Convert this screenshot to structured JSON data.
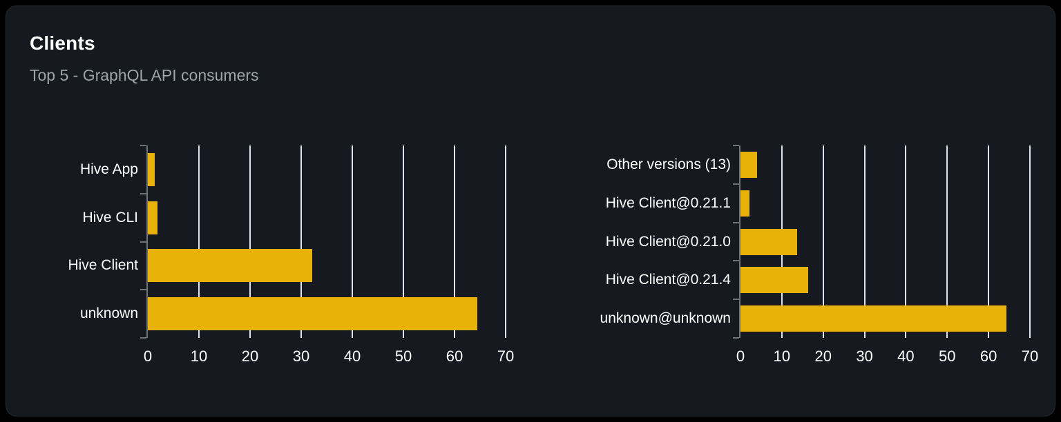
{
  "panel": {
    "title": "Clients",
    "subtitle": "Top 5 - GraphQL API consumers"
  },
  "colors": {
    "page_bg": "#000000",
    "panel_bg": "#161a20",
    "panel_border": "#262a31",
    "bar": "#e9b208",
    "gridline": "#dfe5f0",
    "axis": "#6e737c",
    "label_text": "#ffffff",
    "subtitle_text": "#9ea3aa"
  },
  "chart_data": [
    {
      "type": "bar",
      "orientation": "horizontal",
      "title": "",
      "xlabel": "",
      "ylabel": "",
      "categories": [
        "Hive App",
        "Hive CLI",
        "Hive Client",
        "unknown"
      ],
      "values": [
        1.4,
        1.9,
        32.2,
        64.4
      ],
      "xlim": [
        0,
        70
      ],
      "xticks": [
        0,
        10,
        20,
        30,
        40,
        50,
        60,
        70
      ],
      "grid": true,
      "legend": false
    },
    {
      "type": "bar",
      "orientation": "horizontal",
      "title": "",
      "xlabel": "",
      "ylabel": "",
      "categories": [
        "Other versions (13)",
        "Hive Client@0.21.1",
        "Hive Client@0.21.0",
        "Hive Client@0.21.4",
        "unknown@unknown"
      ],
      "values": [
        4.0,
        2.2,
        13.7,
        16.3,
        64.3
      ],
      "xlim": [
        0,
        70
      ],
      "xticks": [
        0,
        10,
        20,
        30,
        40,
        50,
        60,
        70
      ],
      "grid": true,
      "legend": false
    }
  ]
}
